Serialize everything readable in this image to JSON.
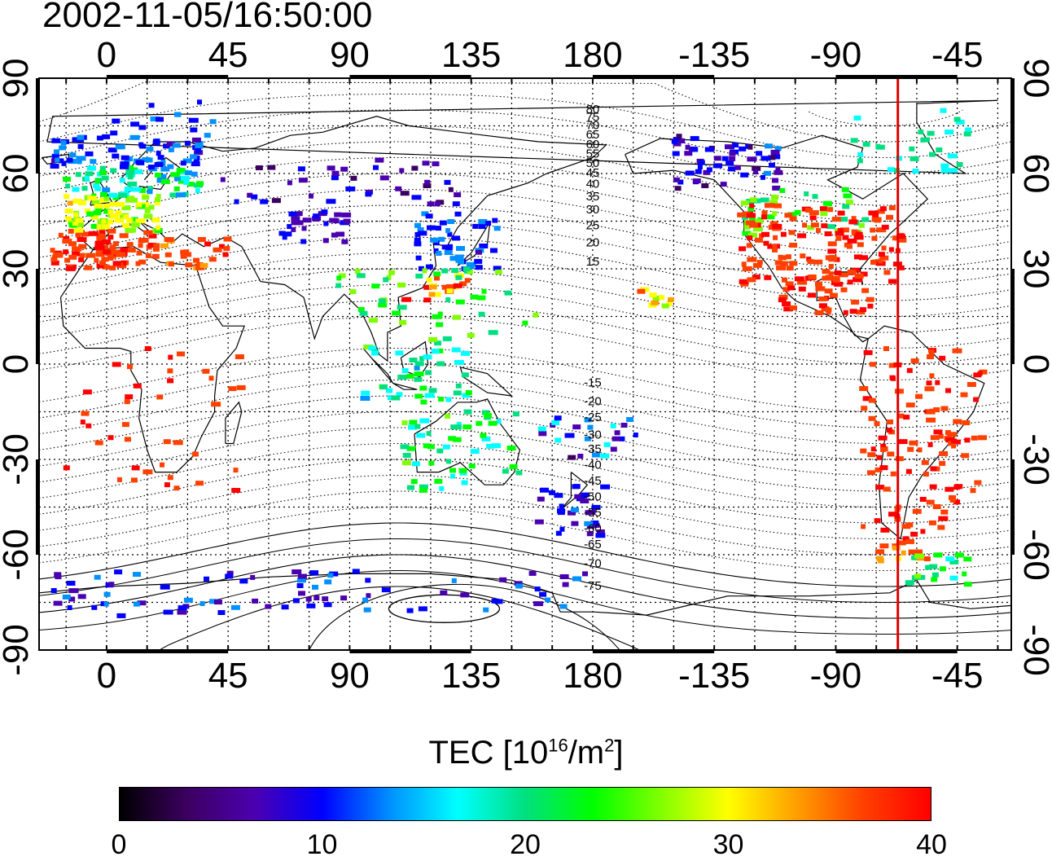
{
  "title": "2002-11-05/16:50:00",
  "map": {
    "projection": "equirectangular",
    "lon_range_display": [
      -25,
      335
    ],
    "lat_range": [
      -90,
      90
    ],
    "top_lon_ticks": [
      "0",
      "45",
      "90",
      "135",
      "180",
      "-135",
      "-90",
      "-45"
    ],
    "bottom_lon_ticks": [
      "0",
      "45",
      "90",
      "135",
      "180",
      "-135",
      "-90",
      "-45"
    ],
    "left_lat_ticks": [
      "90",
      "60",
      "30",
      "0",
      "-30",
      "-60",
      "-90"
    ],
    "right_lat_ticks": [
      "90",
      "60",
      "30",
      "0",
      "-30",
      "-60",
      "-90"
    ],
    "grid": "dotted, every 15 degrees",
    "terminator_line": {
      "longitude": -67,
      "color": "#e00000"
    },
    "contour_labels_north": [
      "80",
      "75",
      "70",
      "65",
      "60",
      "55",
      "50",
      "45",
      "40",
      "35",
      "30",
      "25",
      "20",
      "15"
    ],
    "contour_labels_south": [
      "-15",
      "-20",
      "-25",
      "-30",
      "-35",
      "-40",
      "-45",
      "-50",
      "-55",
      "-60",
      "-65",
      "-70",
      "-75"
    ],
    "colors": {
      "frame": "#000000",
      "grid": "#000000",
      "coast": "#000000",
      "terminator": "#e00000"
    }
  },
  "colorbar": {
    "label_main": "TEC  [10",
    "label_exp1": "16",
    "label_mid": "/m",
    "label_exp2": "2",
    "label_end": "]",
    "min": 0,
    "max": 40,
    "ticks": [
      "0",
      "10",
      "20",
      "30",
      "40"
    ],
    "colors": [
      "#000000",
      "#3c0060",
      "#4b00b0",
      "#0000ff",
      "#0090ff",
      "#00ffff",
      "#00e080",
      "#00ff00",
      "#80ff00",
      "#ffff00",
      "#ffa000",
      "#ff4000",
      "#ff0000"
    ]
  }
}
